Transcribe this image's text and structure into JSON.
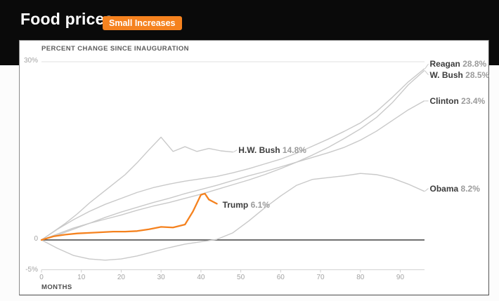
{
  "header": {
    "title": "Food prices",
    "badge": "Small Increases",
    "badge_color": "#F5821F",
    "band_color": "#0a0a0a"
  },
  "colors": {
    "gray_line": "#c9c9c9",
    "accent_orange": "#F5821F",
    "zero_line": "#404040",
    "axis_line": "#d0d0d0",
    "gridline": "#e2e2e2"
  },
  "chart_data": {
    "type": "line",
    "title": "PERCENT CHANGE SINCE INAUGURATION",
    "xlabel": "MONTHS",
    "x_ticks": [
      0,
      10,
      20,
      30,
      40,
      50,
      60,
      70,
      80,
      90
    ],
    "xlim": [
      0,
      96
    ],
    "ylim": [
      -5,
      30
    ],
    "y_tick_labels": {
      "top": "30%",
      "zero": "0",
      "bottom": "-5%"
    },
    "gridline_at": 30,
    "zero_line_at": 0,
    "legend_position": "end-of-line labels",
    "series": [
      {
        "name": "Reagan",
        "label_value": "28.8%",
        "end_value": 28.8,
        "color": "#c9c9c9",
        "width": 1.4,
        "label_dy": -7,
        "leader": true,
        "months": [
          0,
          4,
          8,
          12,
          16,
          20,
          24,
          28,
          32,
          36,
          40,
          44,
          48,
          52,
          56,
          60,
          64,
          68,
          72,
          76,
          80,
          84,
          88,
          92,
          96
        ],
        "values": [
          0,
          1.8,
          3.4,
          4.8,
          6.0,
          7.0,
          8.0,
          8.8,
          9.4,
          9.9,
          10.3,
          10.7,
          11.3,
          12.0,
          12.8,
          13.6,
          14.6,
          15.8,
          17.0,
          18.3,
          19.7,
          21.6,
          24.0,
          26.6,
          28.8
        ]
      },
      {
        "name": "W. Bush",
        "label_value": "28.5%",
        "end_value": 28.5,
        "color": "#c9c9c9",
        "width": 1.4,
        "label_dy": 6,
        "leader": true,
        "months": [
          0,
          4,
          8,
          12,
          16,
          20,
          24,
          28,
          32,
          36,
          40,
          44,
          48,
          52,
          56,
          60,
          64,
          68,
          72,
          76,
          80,
          84,
          88,
          92,
          96
        ],
        "values": [
          0,
          1.0,
          2.0,
          2.8,
          3.5,
          4.2,
          5.0,
          5.7,
          6.3,
          7.0,
          7.7,
          8.5,
          9.3,
          10.1,
          11.0,
          12.0,
          13.1,
          14.3,
          15.6,
          17.1,
          18.7,
          20.6,
          23.1,
          26.1,
          28.5
        ]
      },
      {
        "name": "Clinton",
        "label_value": "23.4%",
        "end_value": 23.4,
        "color": "#c9c9c9",
        "width": 1.4,
        "label_dy": 0,
        "leader": true,
        "months": [
          0,
          4,
          8,
          12,
          16,
          20,
          24,
          28,
          32,
          36,
          40,
          44,
          48,
          52,
          56,
          60,
          64,
          68,
          72,
          76,
          80,
          84,
          88,
          92,
          96
        ],
        "values": [
          0,
          0.8,
          1.8,
          2.8,
          3.8,
          4.7,
          5.5,
          6.3,
          7.0,
          7.8,
          8.5,
          9.2,
          10.0,
          10.8,
          11.5,
          12.3,
          13.1,
          13.9,
          14.7,
          15.6,
          16.8,
          18.3,
          20.1,
          21.9,
          23.4
        ]
      },
      {
        "name": "H.W. Bush",
        "label_value": "14.8%",
        "end_value": 14.8,
        "color": "#c9c9c9",
        "width": 1.4,
        "label_dy": -3,
        "leader": true,
        "months": [
          0,
          3,
          6,
          9,
          12,
          15,
          18,
          21,
          24,
          27,
          30,
          33,
          36,
          39,
          42,
          45,
          48
        ],
        "values": [
          0,
          1.4,
          2.8,
          4.4,
          6.2,
          7.8,
          9.4,
          11.0,
          13.0,
          15.2,
          17.3,
          14.9,
          15.7,
          14.9,
          15.4,
          15.0,
          14.8
        ]
      },
      {
        "name": "Obama",
        "label_value": "8.2%",
        "end_value": 8.2,
        "color": "#c9c9c9",
        "width": 1.4,
        "label_dy": -4,
        "leader": true,
        "months": [
          0,
          4,
          8,
          12,
          16,
          20,
          24,
          28,
          32,
          36,
          40,
          44,
          48,
          52,
          56,
          60,
          64,
          68,
          72,
          76,
          80,
          84,
          88,
          92,
          96
        ],
        "values": [
          0,
          -1.4,
          -2.6,
          -3.2,
          -3.4,
          -3.2,
          -2.7,
          -2.0,
          -1.3,
          -0.7,
          -0.3,
          0.1,
          1.2,
          3.2,
          5.4,
          7.4,
          9.2,
          10.2,
          10.5,
          10.8,
          11.2,
          11.0,
          10.4,
          9.4,
          8.2
        ]
      },
      {
        "name": "Trump",
        "label_value": "6.1%",
        "end_value": 6.1,
        "color": "#F5821F",
        "width": 2.3,
        "label_dy": 2,
        "leader": false,
        "months": [
          0,
          3,
          6,
          9,
          12,
          15,
          18,
          21,
          24,
          27,
          30,
          33,
          36,
          38,
          40,
          41,
          42,
          44
        ],
        "values": [
          0,
          0.6,
          0.9,
          1.1,
          1.2,
          1.3,
          1.4,
          1.4,
          1.5,
          1.8,
          2.2,
          2.1,
          2.6,
          4.8,
          7.6,
          7.8,
          6.8,
          6.1
        ]
      }
    ]
  }
}
